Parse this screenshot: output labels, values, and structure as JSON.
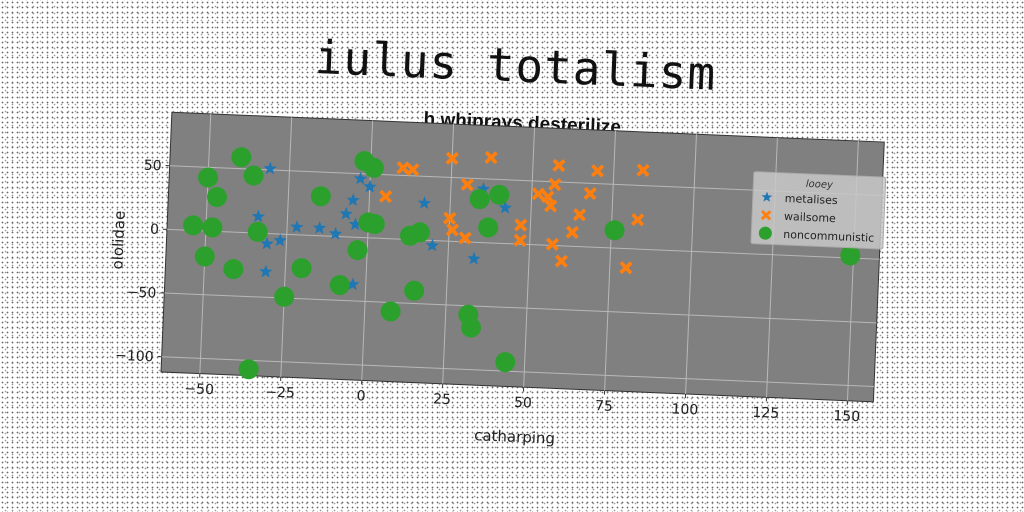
{
  "main_title": "iulus totalism",
  "colors": {
    "metalises": "#1f77b4",
    "wailsome": "#ff7f0e",
    "noncommunistic": "#2ca02c",
    "plot_background": "#808080",
    "grid": "#b8b8b8"
  },
  "chart_data": {
    "type": "scatter",
    "title": "h whiprays desterilize",
    "xlabel": "catharping",
    "ylabel": "ololidae",
    "xlim": [
      -62,
      158
    ],
    "ylim": [
      -112,
      92
    ],
    "xticks": [
      -50,
      -25,
      0,
      25,
      50,
      75,
      100,
      125,
      150
    ],
    "yticks": [
      -100,
      -50,
      0,
      50
    ],
    "xtick_labels": [
      "−50",
      "−25",
      "0",
      "25",
      "50",
      "75",
      "100",
      "125",
      "150"
    ],
    "ytick_labels": [
      "−100",
      "−50",
      "0",
      "50"
    ],
    "grid": true,
    "legend": {
      "title": "looey",
      "placement": "top-right"
    },
    "series": [
      {
        "name": "metalises",
        "marker": "star",
        "points": [
          [
            -31,
            51
          ],
          [
            -34,
            13
          ],
          [
            -22,
            6
          ],
          [
            -31,
            -8
          ],
          [
            -27,
            -5
          ],
          [
            -15,
            6
          ],
          [
            -10,
            2
          ],
          [
            -7,
            18
          ],
          [
            -5,
            29
          ],
          [
            -3,
            46
          ],
          [
            0,
            40
          ],
          [
            -4,
            10
          ],
          [
            17,
            29
          ],
          [
            -31,
            -30
          ],
          [
            -4,
            -37
          ],
          [
            20,
            -4
          ],
          [
            33,
            -13
          ],
          [
            42,
            28
          ],
          [
            35,
            42
          ]
        ]
      },
      {
        "name": "wailsome",
        "marker": "x",
        "points": [
          [
            10,
            56
          ],
          [
            13,
            55
          ],
          [
            25,
            65
          ],
          [
            37,
            67
          ],
          [
            5,
            33
          ],
          [
            25,
            18
          ],
          [
            26,
            9
          ],
          [
            30,
            3
          ],
          [
            30,
            45
          ],
          [
            47,
            15
          ],
          [
            47,
            3
          ],
          [
            52,
            40
          ],
          [
            55,
            38
          ],
          [
            57,
            48
          ],
          [
            58,
            63
          ],
          [
            70,
            60
          ],
          [
            65,
            25
          ],
          [
            63,
            11
          ],
          [
            56,
            31
          ],
          [
            57,
            1
          ],
          [
            60,
            -12
          ],
          [
            68,
            42
          ],
          [
            84,
            62
          ],
          [
            83,
            23
          ],
          [
            80,
            -15
          ]
        ]
      },
      {
        "name": "noncommunistic",
        "marker": "circle",
        "points": [
          [
            -40,
            59
          ],
          [
            -36,
            45
          ],
          [
            -50,
            42
          ],
          [
            -47,
            27
          ],
          [
            -15,
            31
          ],
          [
            -2,
            60
          ],
          [
            1,
            55
          ],
          [
            -54,
            4
          ],
          [
            -48,
            3
          ],
          [
            -50,
            -20
          ],
          [
            -34,
            1
          ],
          [
            -41,
            -29
          ],
          [
            -20,
            -26
          ],
          [
            -25,
            -49
          ],
          [
            -8,
            -38
          ],
          [
            -3,
            -10
          ],
          [
            0,
            12
          ],
          [
            2,
            11
          ],
          [
            13,
            3
          ],
          [
            16,
            6
          ],
          [
            34,
            34
          ],
          [
            40,
            38
          ],
          [
            37,
            12
          ],
          [
            15,
            -40
          ],
          [
            8,
            -57
          ],
          [
            32,
            -57
          ],
          [
            33,
            -67
          ],
          [
            44,
            -93
          ],
          [
            76,
            14
          ],
          [
            -35,
            -107
          ],
          [
            149,
            2
          ]
        ]
      }
    ]
  }
}
